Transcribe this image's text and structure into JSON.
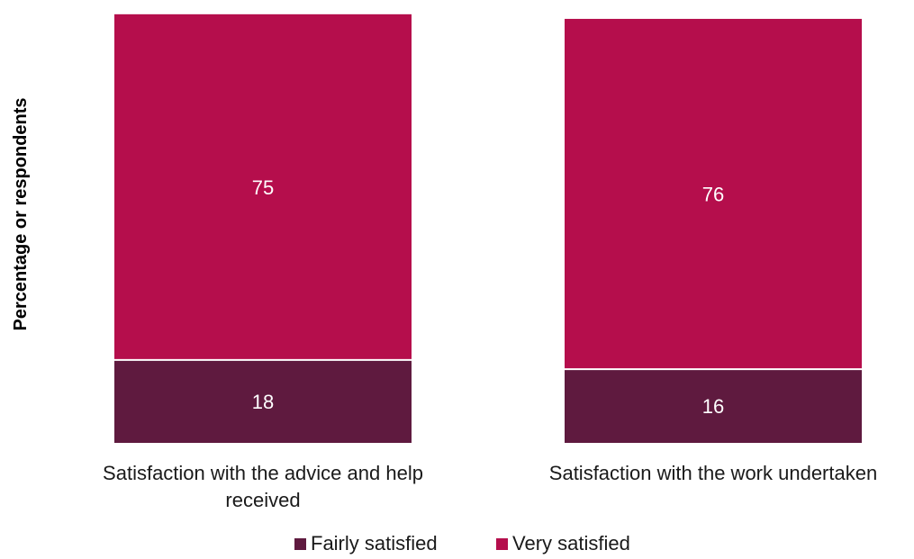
{
  "chart_data": {
    "type": "bar",
    "stacked": true,
    "title": "",
    "xlabel": "",
    "ylabel": "Percentage or respondents",
    "ylim": [
      0,
      93
    ],
    "grid": false,
    "legend_position": "bottom",
    "categories": [
      "Satisfaction with the advice and help received",
      "Satisfaction with the work undertaken"
    ],
    "category_lines": [
      [
        "Satisfaction with the advice and help",
        "received"
      ],
      [
        "Satisfaction with the work undertaken"
      ]
    ],
    "series": [
      {
        "name": "Fairly satisfied",
        "values": [
          18,
          16
        ],
        "color": "#5f1a3f"
      },
      {
        "name": "Very satisfied",
        "values": [
          75,
          76
        ],
        "color": "#b50e4c"
      }
    ]
  }
}
